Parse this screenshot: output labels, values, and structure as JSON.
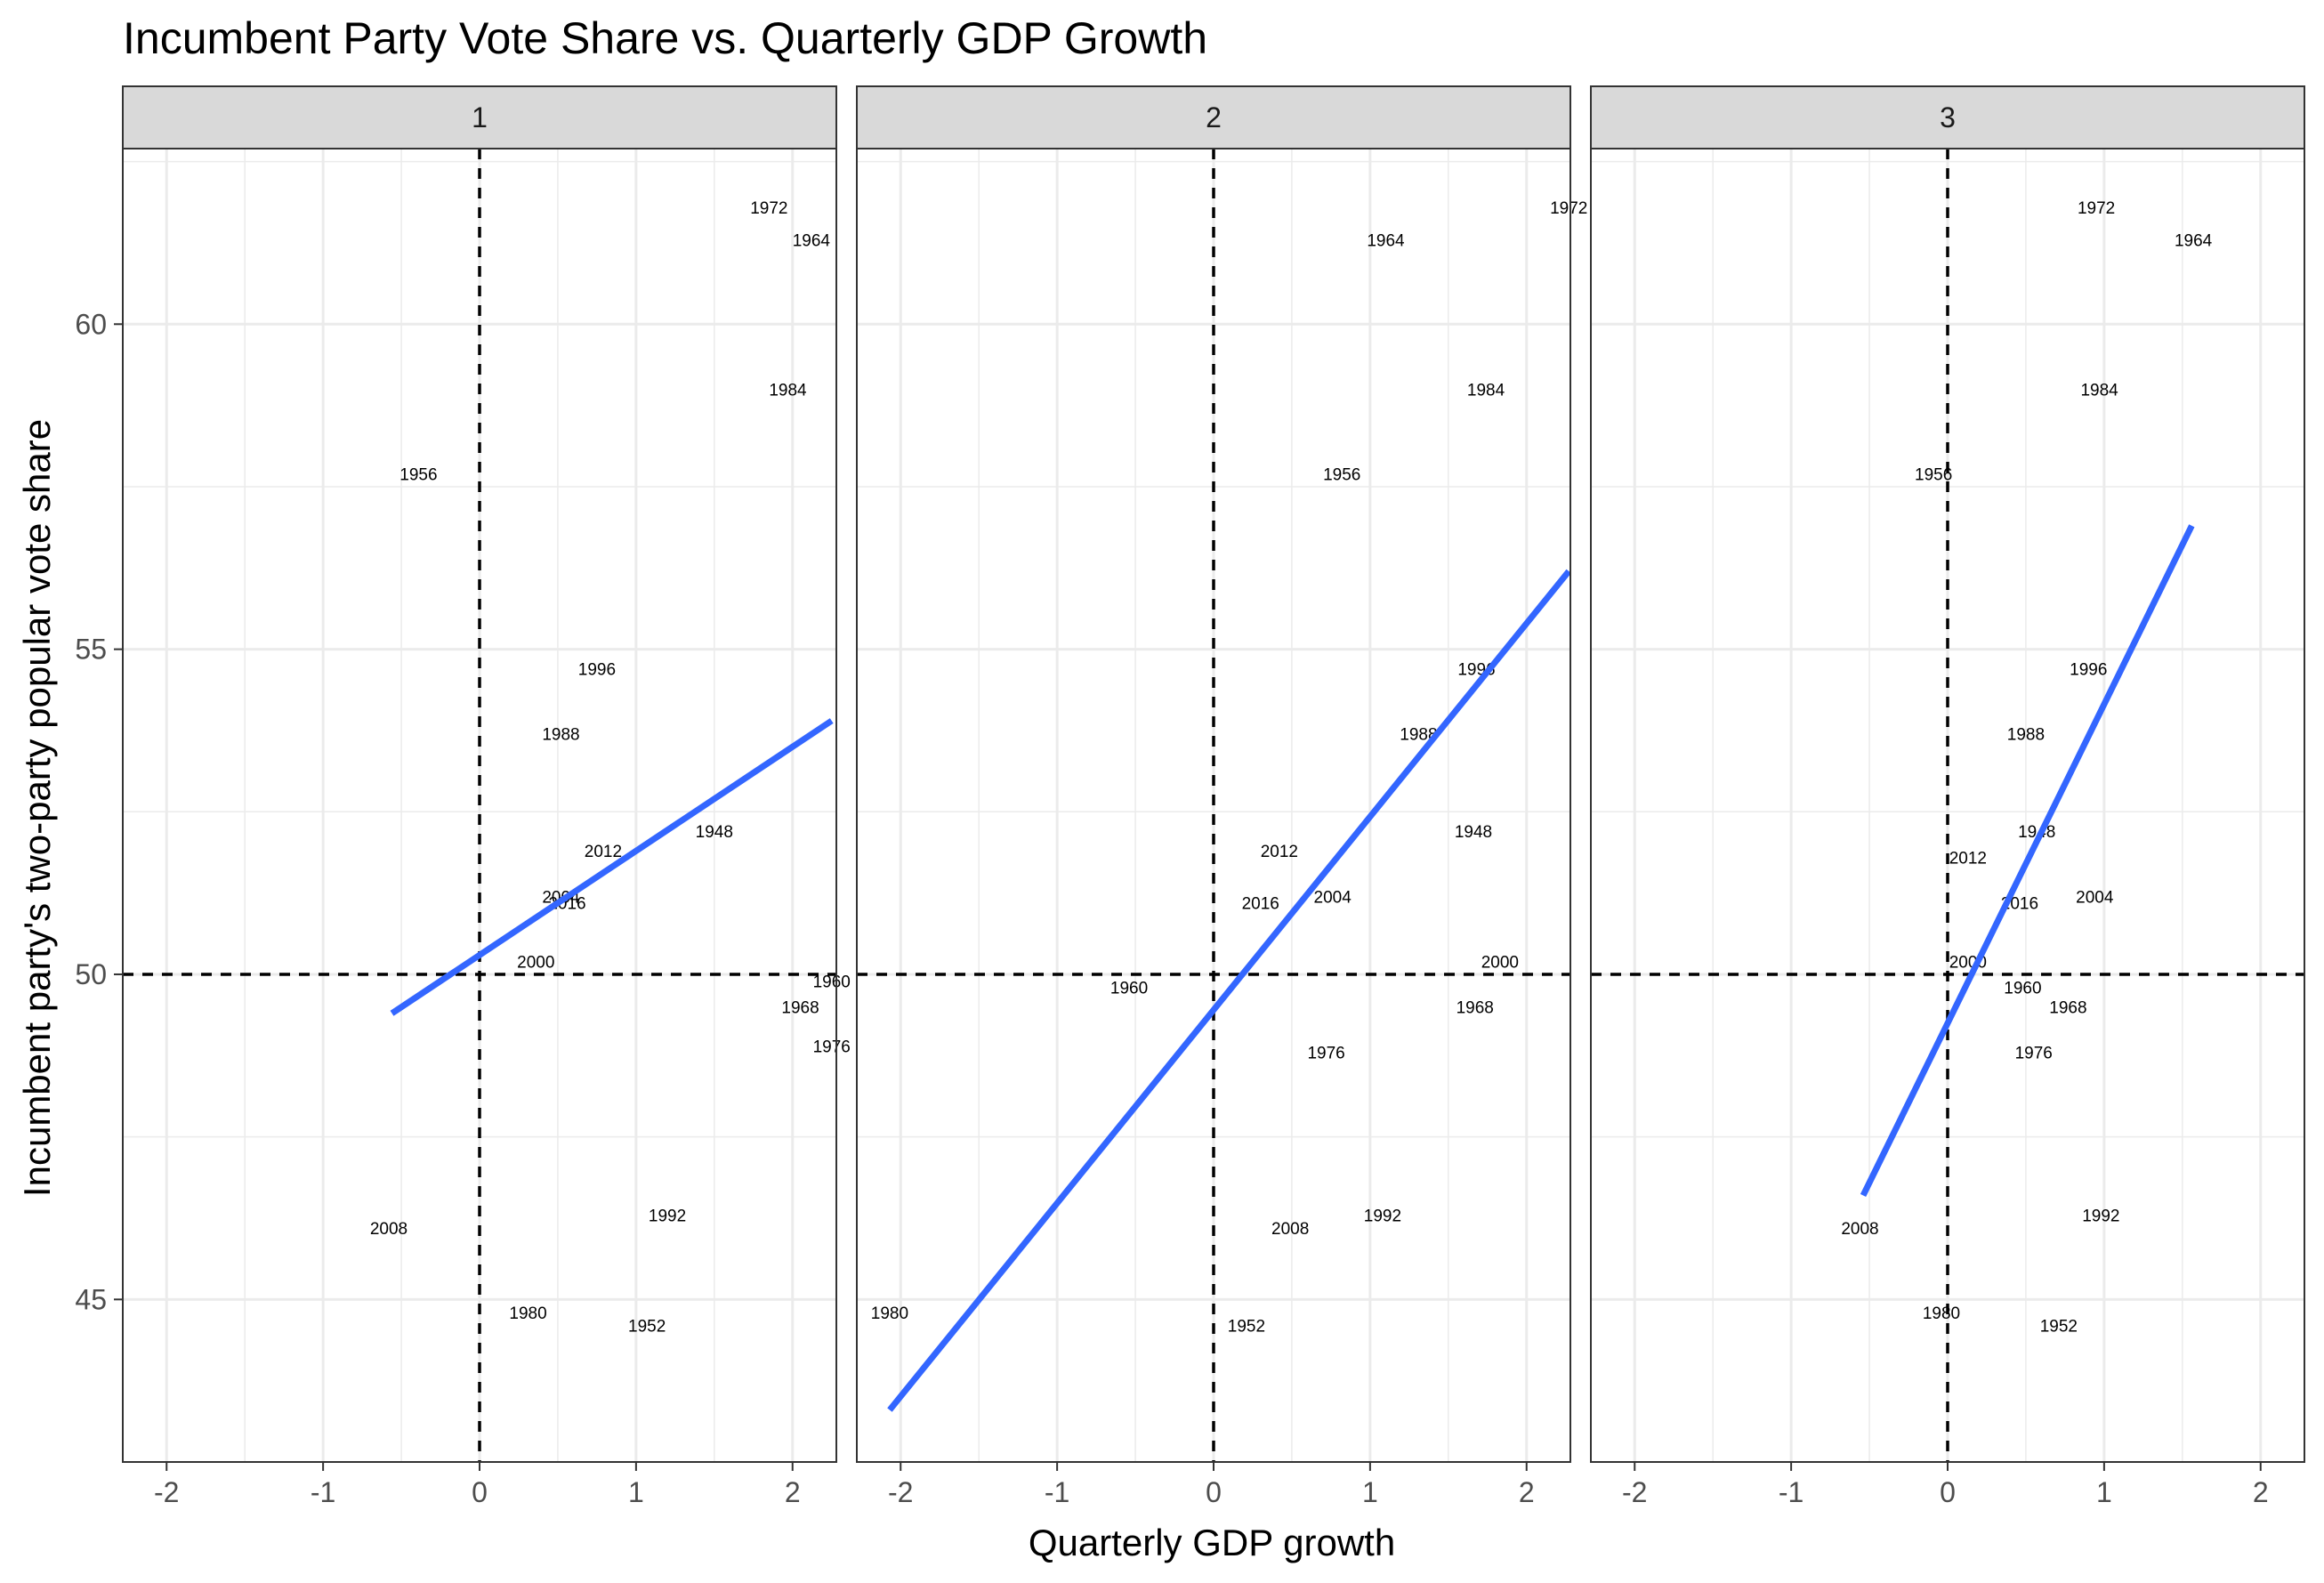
{
  "chart_data": {
    "type": "scatter",
    "title": "Incumbent Party Vote Share vs. Quarterly GDP Growth",
    "xlabel": "Quarterly GDP growth",
    "ylabel": "Incumbent party's two-party popular vote share",
    "xlim": [
      -2.28,
      2.28
    ],
    "ylim": [
      42.5,
      62.7
    ],
    "x_ticks": [
      -2,
      -1,
      0,
      1,
      2
    ],
    "x_tick_labels": [
      "-2",
      "-1",
      "0",
      "1",
      "2"
    ],
    "y_ticks": [
      45,
      50,
      55,
      60
    ],
    "y_tick_labels": [
      "45",
      "50",
      "55",
      "60"
    ],
    "reference_lines": {
      "x": 0,
      "y": 50,
      "style": "dashed"
    },
    "grid": true,
    "trend_color": "#3366ff",
    "panels": [
      {
        "strip": "1",
        "trend": {
          "x": [
            -0.56,
            2.25
          ],
          "y": [
            49.4,
            53.9
          ]
        },
        "points": [
          {
            "label": "1972",
            "x": 1.85,
            "y": 61.8
          },
          {
            "label": "1964",
            "x": 2.12,
            "y": 61.3
          },
          {
            "label": "1984",
            "x": 1.97,
            "y": 59.0
          },
          {
            "label": "1956",
            "x": -0.39,
            "y": 57.7
          },
          {
            "label": "1996",
            "x": 0.75,
            "y": 54.7
          },
          {
            "label": "1988",
            "x": 0.52,
            "y": 53.7
          },
          {
            "label": "1948",
            "x": 1.5,
            "y": 52.2
          },
          {
            "label": "2012",
            "x": 0.79,
            "y": 51.9
          },
          {
            "label": "2004",
            "x": 0.52,
            "y": 51.2
          },
          {
            "label": "2016",
            "x": 0.56,
            "y": 51.1
          },
          {
            "label": "2000",
            "x": 0.36,
            "y": 50.2
          },
          {
            "label": "1960",
            "x": 2.25,
            "y": 49.9
          },
          {
            "label": "1968",
            "x": 2.05,
            "y": 49.5
          },
          {
            "label": "1976",
            "x": 2.25,
            "y": 48.9
          },
          {
            "label": "1992",
            "x": 1.2,
            "y": 46.3
          },
          {
            "label": "2008",
            "x": -0.58,
            "y": 46.1
          },
          {
            "label": "1980",
            "x": 0.31,
            "y": 44.8
          },
          {
            "label": "1952",
            "x": 1.07,
            "y": 44.6
          }
        ]
      },
      {
        "strip": "2",
        "trend": {
          "x": [
            -2.07,
            2.27
          ],
          "y": [
            43.3,
            56.2
          ]
        },
        "points": [
          {
            "label": "1972",
            "x": 2.27,
            "y": 61.8
          },
          {
            "label": "1964",
            "x": 1.1,
            "y": 61.3
          },
          {
            "label": "1984",
            "x": 1.74,
            "y": 59.0
          },
          {
            "label": "1956",
            "x": 0.82,
            "y": 57.7
          },
          {
            "label": "1996",
            "x": 1.68,
            "y": 54.7
          },
          {
            "label": "1988",
            "x": 1.31,
            "y": 53.7
          },
          {
            "label": "1948",
            "x": 1.66,
            "y": 52.2
          },
          {
            "label": "2012",
            "x": 0.42,
            "y": 51.9
          },
          {
            "label": "2004",
            "x": 0.76,
            "y": 51.2
          },
          {
            "label": "2016",
            "x": 0.3,
            "y": 51.1
          },
          {
            "label": "2000",
            "x": 1.83,
            "y": 50.2
          },
          {
            "label": "1960",
            "x": -0.54,
            "y": 49.8
          },
          {
            "label": "1968",
            "x": 1.67,
            "y": 49.5
          },
          {
            "label": "1976",
            "x": 0.72,
            "y": 48.8
          },
          {
            "label": "1992",
            "x": 1.08,
            "y": 46.3
          },
          {
            "label": "2008",
            "x": 0.49,
            "y": 46.1
          },
          {
            "label": "1980",
            "x": -2.07,
            "y": 44.8
          },
          {
            "label": "1952",
            "x": 0.21,
            "y": 44.6
          }
        ]
      },
      {
        "strip": "3",
        "trend": {
          "x": [
            -0.54,
            1.56
          ],
          "y": [
            46.6,
            56.9
          ]
        },
        "points": [
          {
            "label": "1972",
            "x": 0.95,
            "y": 61.8
          },
          {
            "label": "1964",
            "x": 1.57,
            "y": 61.3
          },
          {
            "label": "1984",
            "x": 0.97,
            "y": 59.0
          },
          {
            "label": "1956",
            "x": -0.09,
            "y": 57.7
          },
          {
            "label": "1996",
            "x": 0.9,
            "y": 54.7
          },
          {
            "label": "1988",
            "x": 0.5,
            "y": 53.7
          },
          {
            "label": "1948",
            "x": 0.57,
            "y": 52.2
          },
          {
            "label": "2012",
            "x": 0.13,
            "y": 51.8
          },
          {
            "label": "2004",
            "x": 0.94,
            "y": 51.2
          },
          {
            "label": "2016",
            "x": 0.46,
            "y": 51.1
          },
          {
            "label": "2000",
            "x": 0.13,
            "y": 50.2
          },
          {
            "label": "1960",
            "x": 0.48,
            "y": 49.8
          },
          {
            "label": "1968",
            "x": 0.77,
            "y": 49.5
          },
          {
            "label": "1976",
            "x": 0.55,
            "y": 48.8
          },
          {
            "label": "1992",
            "x": 0.98,
            "y": 46.3
          },
          {
            "label": "2008",
            "x": -0.56,
            "y": 46.1
          },
          {
            "label": "1980",
            "x": -0.04,
            "y": 44.8
          },
          {
            "label": "1952",
            "x": 0.71,
            "y": 44.6
          }
        ]
      }
    ]
  }
}
